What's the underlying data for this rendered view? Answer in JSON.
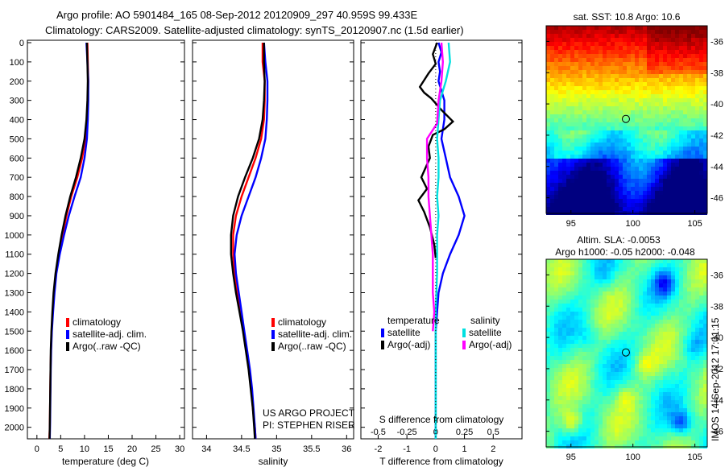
{
  "header": {
    "line1": "Argo profile: AO 5901484_165 08-Sep-2012 20120909_297 40.959S 99.433E",
    "line2": "Climatology: CARS2009. Satellite-adjusted climatology: synTS_20120907.nc (1.5d earlier)"
  },
  "side_label": "IMOS 14-Sep-2012 17:01:15",
  "credit": {
    "line1": "US ARGO PROJECT",
    "line2": "PI: STEPHEN RISER"
  },
  "colors": {
    "climatology": "#ff0000",
    "satellite": "#0000ff",
    "argo": "#000000",
    "sal_satellite": "#00e0e0",
    "sal_argo": "#ff00ff"
  },
  "chart_data": [
    {
      "id": "temperature",
      "type": "line",
      "xlabel": "temperature (deg C)",
      "ylabel": "",
      "xlim": [
        -2,
        31
      ],
      "ylim": [
        2050,
        0
      ],
      "xticks": [
        0,
        5,
        10,
        15,
        20,
        25,
        30
      ],
      "yticks": [
        0,
        100,
        200,
        300,
        400,
        500,
        600,
        700,
        800,
        900,
        1000,
        1100,
        1200,
        1300,
        1400,
        1500,
        1600,
        1700,
        1800,
        1900,
        2000
      ],
      "legend": [
        {
          "label": "climatology",
          "color": "#ff0000"
        },
        {
          "label": "satellite-adj. clim.",
          "color": "#0000ff"
        },
        {
          "label": "Argo(..raw -QC)",
          "color": "#000000"
        }
      ],
      "series": [
        {
          "color": "#ff0000",
          "points": [
            [
              10.6,
              0
            ],
            [
              10.7,
              100
            ],
            [
              10.8,
              200
            ],
            [
              10.7,
              300
            ],
            [
              10.5,
              400
            ],
            [
              10.2,
              500
            ],
            [
              9.5,
              600
            ],
            [
              8.5,
              700
            ],
            [
              7.2,
              800
            ],
            [
              6.2,
              900
            ],
            [
              5.4,
              1000
            ],
            [
              4.6,
              1100
            ],
            [
              4.0,
              1200
            ],
            [
              3.6,
              1300
            ],
            [
              3.3,
              1400
            ],
            [
              3.1,
              1500
            ],
            [
              2.95,
              1600
            ],
            [
              2.85,
              1700
            ],
            [
              2.8,
              1800
            ],
            [
              2.75,
              1900
            ],
            [
              2.7,
              2000
            ],
            [
              2.6,
              2060
            ]
          ]
        },
        {
          "color": "#0000ff",
          "points": [
            [
              10.4,
              0
            ],
            [
              10.6,
              100
            ],
            [
              10.8,
              200
            ],
            [
              10.8,
              300
            ],
            [
              10.7,
              400
            ],
            [
              10.5,
              500
            ],
            [
              10.0,
              600
            ],
            [
              9.2,
              700
            ],
            [
              7.9,
              800
            ],
            [
              6.7,
              900
            ],
            [
              5.7,
              1000
            ],
            [
              4.8,
              1100
            ],
            [
              4.1,
              1200
            ],
            [
              3.7,
              1300
            ],
            [
              3.4,
              1400
            ],
            [
              3.15,
              1500
            ],
            [
              3.0,
              1600
            ],
            [
              2.9,
              1700
            ],
            [
              2.85,
              1800
            ],
            [
              2.8,
              1900
            ],
            [
              2.75,
              2000
            ],
            [
              2.7,
              2060
            ]
          ]
        },
        {
          "color": "#000000",
          "points": [
            [
              10.5,
              0
            ],
            [
              10.6,
              100
            ],
            [
              10.7,
              200
            ],
            [
              10.6,
              300
            ],
            [
              10.4,
              400
            ],
            [
              10.0,
              500
            ],
            [
              9.2,
              600
            ],
            [
              8.2,
              700
            ],
            [
              7.0,
              800
            ],
            [
              6.0,
              900
            ],
            [
              5.2,
              1000
            ],
            [
              4.5,
              1100
            ],
            [
              3.9,
              1200
            ],
            [
              3.5,
              1300
            ],
            [
              3.25,
              1400
            ],
            [
              3.05,
              1500
            ],
            [
              2.9,
              1600
            ],
            [
              2.85,
              1700
            ],
            [
              2.8,
              1800
            ],
            [
              2.75,
              1900
            ],
            [
              2.7,
              2000
            ],
            [
              2.65,
              2060
            ]
          ]
        }
      ]
    },
    {
      "id": "salinity",
      "type": "line",
      "xlabel": "salinity",
      "ylabel": "",
      "xlim": [
        33.8,
        36.1
      ],
      "ylim": [
        2050,
        0
      ],
      "xticks": [
        34,
        34.5,
        35,
        35.5,
        36
      ],
      "legend": [
        {
          "label": "climatology",
          "color": "#ff0000"
        },
        {
          "label": "satellite-adj. clim.",
          "color": "#0000ff"
        },
        {
          "label": "Argo(..raw -QC)",
          "color": "#000000"
        }
      ],
      "series": [
        {
          "color": "#ff0000",
          "points": [
            [
              34.8,
              0
            ],
            [
              34.8,
              100
            ],
            [
              34.83,
              200
            ],
            [
              34.83,
              300
            ],
            [
              34.82,
              400
            ],
            [
              34.78,
              500
            ],
            [
              34.7,
              600
            ],
            [
              34.6,
              700
            ],
            [
              34.5,
              800
            ],
            [
              34.42,
              900
            ],
            [
              34.38,
              1000
            ],
            [
              34.38,
              1100
            ],
            [
              34.4,
              1200
            ],
            [
              34.44,
              1300
            ],
            [
              34.49,
              1400
            ],
            [
              34.53,
              1500
            ],
            [
              34.57,
              1600
            ],
            [
              34.61,
              1700
            ],
            [
              34.64,
              1800
            ],
            [
              34.66,
              1900
            ],
            [
              34.69,
              2000
            ],
            [
              34.7,
              2060
            ]
          ]
        },
        {
          "color": "#0000ff",
          "points": [
            [
              34.82,
              0
            ],
            [
              34.84,
              100
            ],
            [
              34.87,
              200
            ],
            [
              34.87,
              300
            ],
            [
              34.86,
              400
            ],
            [
              34.84,
              500
            ],
            [
              34.78,
              600
            ],
            [
              34.7,
              700
            ],
            [
              34.6,
              800
            ],
            [
              34.5,
              900
            ],
            [
              34.43,
              1000
            ],
            [
              34.4,
              1100
            ],
            [
              34.42,
              1200
            ],
            [
              34.46,
              1300
            ],
            [
              34.5,
              1400
            ],
            [
              34.54,
              1500
            ],
            [
              34.58,
              1600
            ],
            [
              34.62,
              1700
            ],
            [
              34.65,
              1800
            ],
            [
              34.67,
              1900
            ],
            [
              34.69,
              2000
            ],
            [
              34.7,
              2060
            ]
          ]
        },
        {
          "color": "#000000",
          "points": [
            [
              34.82,
              0
            ],
            [
              34.82,
              100
            ],
            [
              34.83,
              200
            ],
            [
              34.82,
              300
            ],
            [
              34.8,
              400
            ],
            [
              34.75,
              500
            ],
            [
              34.66,
              600
            ],
            [
              34.55,
              700
            ],
            [
              34.45,
              800
            ],
            [
              34.38,
              900
            ],
            [
              34.35,
              1000
            ],
            [
              34.35,
              1100
            ],
            [
              34.38,
              1200
            ],
            [
              34.42,
              1300
            ],
            [
              34.47,
              1400
            ],
            [
              34.52,
              1500
            ],
            [
              34.56,
              1600
            ],
            [
              34.6,
              1700
            ],
            [
              34.63,
              1800
            ],
            [
              34.66,
              1900
            ],
            [
              34.68,
              2000
            ],
            [
              34.69,
              2060
            ]
          ]
        }
      ]
    },
    {
      "id": "difference",
      "type": "line",
      "xlabel": "T difference from climatology",
      "xlabel_top": "S difference from climatology",
      "xlim": [
        -2.6,
        3.0
      ],
      "ylim": [
        2050,
        0
      ],
      "xticks": [
        -2,
        -1,
        0,
        1,
        2
      ],
      "s_xticks": [
        -0.5,
        -0.25,
        0,
        0.25,
        0.5
      ],
      "s_tick_labels": [
        "-0.5",
        "-0.25",
        "0",
        "0.25",
        "0.5"
      ],
      "legend": {
        "temperature_title": "temperature",
        "salinity_title": "salinity",
        "temperature": [
          {
            "label": "satellite",
            "color": "#0000ff"
          },
          {
            "label": "Argo(-adj)",
            "color": "#000000"
          }
        ],
        "salinity": [
          {
            "label": "satellite",
            "color": "#00e0e0"
          },
          {
            "label": "Argo(-adj)",
            "color": "#ff00ff"
          }
        ]
      },
      "series": [
        {
          "color": "#0000ff",
          "points": [
            [
              0.1,
              0
            ],
            [
              0.2,
              50
            ],
            [
              0.1,
              100
            ],
            [
              0.15,
              150
            ],
            [
              0.1,
              200
            ],
            [
              0.2,
              250
            ],
            [
              0.3,
              300
            ],
            [
              0.3,
              400
            ],
            [
              0.2,
              500
            ],
            [
              0.35,
              600
            ],
            [
              0.5,
              700
            ],
            [
              0.8,
              800
            ],
            [
              1.0,
              900
            ],
            [
              0.8,
              1000
            ],
            [
              0.5,
              1100
            ],
            [
              0.25,
              1200
            ],
            [
              0.1,
              1300
            ],
            [
              0.05,
              1400
            ],
            [
              0,
              1500
            ],
            [
              0,
              2060
            ]
          ]
        },
        {
          "color": "#000000",
          "points": [
            [
              0.05,
              0
            ],
            [
              -0.1,
              60
            ],
            [
              0,
              110
            ],
            [
              -0.25,
              160
            ],
            [
              -0.55,
              230
            ],
            [
              -0.4,
              260
            ],
            [
              -0.15,
              290
            ],
            [
              0.2,
              350
            ],
            [
              0.6,
              410
            ],
            [
              0.3,
              450
            ],
            [
              -0.1,
              480
            ],
            [
              -0.25,
              540
            ],
            [
              -0.2,
              600
            ],
            [
              -0.5,
              700
            ],
            [
              -0.3,
              760
            ],
            [
              -0.6,
              820
            ],
            [
              -0.4,
              880
            ],
            [
              -0.2,
              960
            ],
            [
              -0.05,
              1050
            ],
            [
              0,
              1120
            ]
          ]
        },
        {
          "color": "#00e0e0",
          "points": [
            [
              0.45,
              0
            ],
            [
              0.5,
              100
            ],
            [
              0.35,
              200
            ],
            [
              0.15,
              300
            ],
            [
              0.1,
              400
            ],
            [
              0.05,
              500
            ],
            [
              0.1,
              600
            ],
            [
              0.1,
              700
            ],
            [
              0.05,
              800
            ],
            [
              0.1,
              900
            ],
            [
              0.05,
              1000
            ],
            [
              0.05,
              1200
            ],
            [
              0,
              1400
            ],
            [
              0,
              2060
            ]
          ]
        },
        {
          "color": "#ff00ff",
          "points": [
            [
              0.2,
              0
            ],
            [
              0.25,
              100
            ],
            [
              0.2,
              200
            ],
            [
              0.1,
              300
            ],
            [
              0.05,
              420
            ],
            [
              -0.3,
              500
            ],
            [
              -0.3,
              600
            ],
            [
              -0.25,
              700
            ],
            [
              -0.25,
              800
            ],
            [
              -0.2,
              900
            ],
            [
              -0.15,
              1000
            ],
            [
              -0.1,
              1100
            ],
            [
              -0.1,
              1200
            ],
            [
              -0.1,
              1300
            ],
            [
              -0.05,
              1400
            ],
            [
              -0.1,
              1500
            ]
          ]
        }
      ]
    },
    {
      "id": "sst-map",
      "type": "heatmap",
      "title": "sat. SST: 10.8 Argo: 10.6",
      "xlim": [
        93,
        106
      ],
      "ylim": [
        -47,
        -35
      ],
      "xticks": [
        95,
        100,
        105
      ],
      "yticks": [
        -36,
        -38,
        -40,
        -42,
        -44,
        -46
      ],
      "marker": {
        "lon": 99.433,
        "lat": -40.959
      }
    },
    {
      "id": "sla-map",
      "type": "heatmap",
      "title": "Altim. SLA: -0.0053",
      "subtitle": "Argo h1000: -0.05 h2000: -0.048",
      "xlim": [
        93,
        106
      ],
      "ylim": [
        -47,
        -35
      ],
      "xticks": [
        95,
        100,
        105
      ],
      "yticks": [
        -36,
        -38,
        -40,
        -42,
        -44,
        -46
      ],
      "marker": {
        "lon": 99.433,
        "lat": -40.959
      }
    }
  ]
}
